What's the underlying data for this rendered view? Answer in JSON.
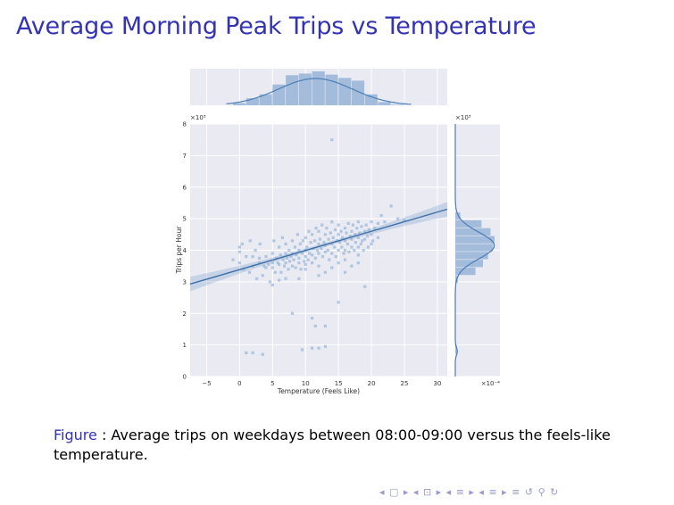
{
  "slide": {
    "title": "Average Morning Peak Trips vs Temperature"
  },
  "caption": {
    "label": "Figure",
    "separator": " : ",
    "text": "Average trips on weekdays between 08:00-09:00 versus the feels-like temperature."
  },
  "navigation": {
    "symbols": "◂ ▢ ▸ ◂ ⊡ ▸ ◂ ≡ ▸ ◂ ≡ ▸   ≡   ↺ ⚲ ↻"
  },
  "chart_data": {
    "type": "scatter",
    "title": "",
    "xlabel": "Temperature (Feels Like)",
    "ylabel": "Trips per Hour",
    "xlim": [
      -7.5,
      31.5
    ],
    "ylim": [
      0,
      8
    ],
    "x_ticks": [
      "−5",
      "0",
      "5",
      "10",
      "15",
      "20",
      "25",
      "30"
    ],
    "y_ticks": [
      "0",
      "1",
      "2",
      "3",
      "4",
      "5",
      "6",
      "7",
      "8"
    ],
    "y_multiplier": "×10³",
    "marginal_y_multiplier": "×10³",
    "marginal_y_axis_label": "×10⁻⁴",
    "grid": true,
    "colors": {
      "accent": "#4a7eb5",
      "face": "#eaeaf2",
      "points": "#8fb0d6"
    },
    "regression": {
      "x": [
        -7.5,
        31.5
      ],
      "y": [
        2.93,
        5.3
      ]
    },
    "top_histogram": {
      "bin_edges": [
        -1,
        1,
        3,
        5,
        7,
        9,
        11,
        13,
        15,
        17,
        19,
        21,
        23,
        25
      ],
      "counts": [
        4,
        13,
        20,
        38,
        55,
        58,
        62,
        56,
        50,
        45,
        20,
        6,
        1
      ]
    },
    "right_histogram": {
      "bin_edges": [
        0.7,
        1.0,
        2.95,
        3.2,
        3.45,
        3.7,
        3.95,
        4.2,
        4.45,
        4.7,
        4.95,
        5.2
      ],
      "counts": [
        3,
        0,
        5,
        40,
        55,
        65,
        75,
        78,
        70,
        52,
        10
      ]
    },
    "points": [
      [
        -1,
        3.7
      ],
      [
        0,
        3.95
      ],
      [
        0,
        3.6
      ],
      [
        0,
        4.1
      ],
      [
        0.4,
        4.2
      ],
      [
        0.6,
        3.4
      ],
      [
        1,
        3.8
      ],
      [
        1.5,
        3.3
      ],
      [
        1.6,
        4.3
      ],
      [
        2,
        3.5
      ],
      [
        2,
        3.8
      ],
      [
        2.4,
        4.0
      ],
      [
        2.6,
        3.1
      ],
      [
        3,
        3.6
      ],
      [
        3,
        3.75
      ],
      [
        3.1,
        4.2
      ],
      [
        3.5,
        3.2
      ],
      [
        3.7,
        3.5
      ],
      [
        4,
        3.8
      ],
      [
        4,
        3.45
      ],
      [
        4.4,
        3.55
      ],
      [
        4.6,
        3.0
      ],
      [
        5,
        3.6
      ],
      [
        5,
        3.9
      ],
      [
        5,
        3.45
      ],
      [
        5.2,
        4.3
      ],
      [
        5.4,
        3.3
      ],
      [
        5.6,
        3.75
      ],
      [
        5.8,
        3.6
      ],
      [
        6,
        4.1
      ],
      [
        6,
        3.55
      ],
      [
        6.2,
        3.85
      ],
      [
        6.3,
        3.3
      ],
      [
        6.5,
        4.4
      ],
      [
        6.6,
        3.7
      ],
      [
        6.8,
        3.5
      ],
      [
        7,
        3.9
      ],
      [
        7,
        3.6
      ],
      [
        7,
        4.2
      ],
      [
        7.2,
        3.75
      ],
      [
        7.4,
        3.4
      ],
      [
        7.5,
        4.0
      ],
      [
        7.6,
        3.65
      ],
      [
        7.8,
        3.8
      ],
      [
        8,
        4.3
      ],
      [
        8,
        3.5
      ],
      [
        8,
        3.9
      ],
      [
        8.2,
        3.7
      ],
      [
        8.4,
        4.1
      ],
      [
        8.5,
        3.45
      ],
      [
        8.6,
        3.85
      ],
      [
        8.8,
        4.5
      ],
      [
        9,
        3.6
      ],
      [
        9,
        4.0
      ],
      [
        9,
        3.75
      ],
      [
        9.2,
        4.2
      ],
      [
        9.3,
        3.4
      ],
      [
        9.5,
        3.9
      ],
      [
        9.6,
        4.3
      ],
      [
        9.8,
        3.65
      ],
      [
        10,
        4.0
      ],
      [
        10,
        3.8
      ],
      [
        10,
        4.4
      ],
      [
        10,
        3.55
      ],
      [
        10.2,
        4.1
      ],
      [
        10.4,
        3.7
      ],
      [
        10.5,
        4.6
      ],
      [
        10.6,
        3.9
      ],
      [
        10.8,
        4.25
      ],
      [
        11,
        3.85
      ],
      [
        11,
        4.5
      ],
      [
        11,
        3.6
      ],
      [
        11.2,
        4.05
      ],
      [
        11.4,
        4.3
      ],
      [
        11.5,
        3.75
      ],
      [
        11.6,
        4.7
      ],
      [
        11.8,
        4.0
      ],
      [
        12,
        4.2
      ],
      [
        12,
        3.9
      ],
      [
        12,
        4.6
      ],
      [
        12,
        3.5
      ],
      [
        12.2,
        4.35
      ],
      [
        12.4,
        4.05
      ],
      [
        12.5,
        4.8
      ],
      [
        12.6,
        3.8
      ],
      [
        12.8,
        4.25
      ],
      [
        13,
        4.5
      ],
      [
        13,
        3.95
      ],
      [
        13,
        4.15
      ],
      [
        13.2,
        4.7
      ],
      [
        13.4,
        4.0
      ],
      [
        13.5,
        4.35
      ],
      [
        13.6,
        3.7
      ],
      [
        13.8,
        4.55
      ],
      [
        14,
        4.2
      ],
      [
        14,
        4.9
      ],
      [
        14,
        3.9
      ],
      [
        14.2,
        4.4
      ],
      [
        14.4,
        4.1
      ],
      [
        14.5,
        4.65
      ],
      [
        14.6,
        3.8
      ],
      [
        14.8,
        4.3
      ],
      [
        15,
        4.5
      ],
      [
        15,
        4.0
      ],
      [
        15,
        4.8
      ],
      [
        15,
        3.6
      ],
      [
        15.2,
        4.25
      ],
      [
        15.4,
        4.6
      ],
      [
        15.5,
        4.1
      ],
      [
        15.6,
        4.4
      ],
      [
        15.8,
        3.9
      ],
      [
        16,
        4.7
      ],
      [
        16,
        4.3
      ],
      [
        16,
        4.0
      ],
      [
        16.2,
        4.55
      ],
      [
        16.4,
        4.2
      ],
      [
        16.5,
        4.85
      ],
      [
        16.6,
        3.95
      ],
      [
        16.8,
        4.45
      ],
      [
        17,
        4.6
      ],
      [
        17,
        4.1
      ],
      [
        17,
        4.35
      ],
      [
        17.2,
        4.8
      ],
      [
        17.4,
        4.0
      ],
      [
        17.5,
        4.5
      ],
      [
        17.6,
        4.25
      ],
      [
        17.8,
        4.7
      ],
      [
        18,
        4.4
      ],
      [
        18,
        4.1
      ],
      [
        18,
        4.9
      ],
      [
        18.2,
        4.55
      ],
      [
        18.4,
        4.2
      ],
      [
        18.5,
        4.75
      ],
      [
        18.6,
        4.3
      ],
      [
        18.8,
        4.0
      ],
      [
        19,
        4.6
      ],
      [
        19,
        4.35
      ],
      [
        19.2,
        4.8
      ],
      [
        19.4,
        4.45
      ],
      [
        19.5,
        4.1
      ],
      [
        19.6,
        4.65
      ],
      [
        20,
        4.5
      ],
      [
        20,
        4.9
      ],
      [
        20.2,
        4.3
      ],
      [
        20.5,
        4.7
      ],
      [
        21,
        4.85
      ],
      [
        21,
        4.4
      ],
      [
        21.5,
        5.1
      ],
      [
        22,
        4.9
      ],
      [
        23,
        5.4
      ],
      [
        24,
        5.0
      ],
      [
        25,
        4.95
      ],
      [
        14,
        7.5
      ],
      [
        1,
        0.75
      ],
      [
        2,
        0.75
      ],
      [
        3.5,
        0.7
      ],
      [
        9.5,
        0.85
      ],
      [
        11,
        0.9
      ],
      [
        12,
        0.9
      ],
      [
        13,
        0.95
      ],
      [
        8,
        2.0
      ],
      [
        11,
        1.85
      ],
      [
        11.5,
        1.6
      ],
      [
        13,
        1.6
      ],
      [
        15,
        2.35
      ],
      [
        19,
        2.85
      ],
      [
        18,
        3.6
      ],
      [
        16,
        3.3
      ],
      [
        17,
        3.5
      ],
      [
        13,
        3.3
      ],
      [
        12,
        3.2
      ],
      [
        9,
        3.1
      ],
      [
        6,
        3.05
      ],
      [
        7,
        3.1
      ],
      [
        5,
        2.9
      ],
      [
        10,
        3.4
      ],
      [
        14,
        3.45
      ],
      [
        16,
        3.7
      ],
      [
        18,
        3.85
      ],
      [
        20,
        4.2
      ]
    ]
  }
}
